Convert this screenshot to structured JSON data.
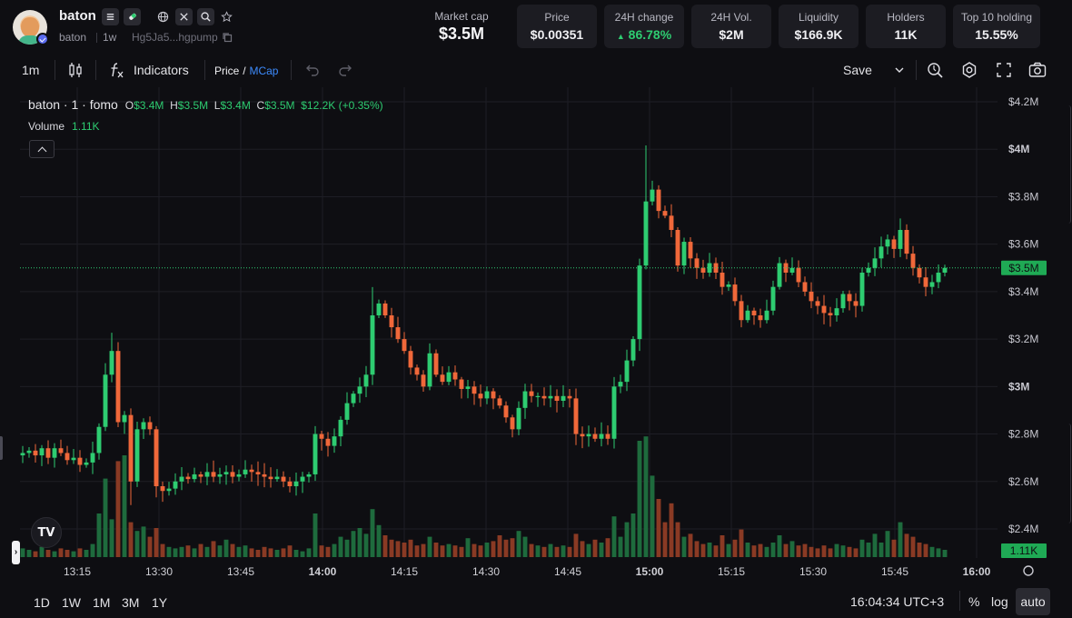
{
  "header": {
    "token_name": "baton",
    "ticker": "baton",
    "age": "1w",
    "address": "Hg5Ja5...hgpump",
    "icons": [
      "list-icon",
      "pill-icon",
      "globe-icon",
      "x-icon",
      "search-icon",
      "star-icon"
    ],
    "market_cap_label": "Market cap",
    "market_cap_value": "$3.5M",
    "stats": [
      {
        "label": "Price",
        "value": "$0.00351"
      },
      {
        "label": "24H change",
        "value": "86.78%",
        "color": "#2ecc71"
      },
      {
        "label": "24H Vol.",
        "value": "$2M"
      },
      {
        "label": "Liquidity",
        "value": "$166.9K"
      },
      {
        "label": "Holders",
        "value": "11K"
      },
      {
        "label": "Top 10 holding",
        "value": "15.55%"
      }
    ]
  },
  "toolbar": {
    "interval": "1m",
    "indicators_label": "Indicators",
    "price_label": "Price",
    "slash": "/",
    "mcap_label": "MCap",
    "save_label": "Save",
    "icons": [
      "candles-icon",
      "fx-icon",
      "undo-icon",
      "redo-icon",
      "chevron-down-icon",
      "replay-icon",
      "settings-icon",
      "fullscreen-icon",
      "camera-icon"
    ]
  },
  "legend": {
    "title": "baton · 1 · fomo",
    "o_key": "O",
    "o_val": "$3.4M",
    "h_key": "H",
    "h_val": "$3.5M",
    "l_key": "L",
    "l_val": "$3.4M",
    "c_key": "C",
    "c_val": "$3.5M",
    "change": "$12.2K (+0.35%)",
    "volume_label": "Volume",
    "volume_value": "1.11K"
  },
  "chart_data": {
    "type": "candlestick",
    "y_axis_labels": [
      "$4.2M",
      "$4M",
      "$3.8M",
      "$3.6M",
      "$3.4M",
      "$3.2M",
      "$3M",
      "$2.8M",
      "$2.6M",
      "$2.4M"
    ],
    "x_axis_labels": [
      "13:15",
      "13:30",
      "13:45",
      "14:00",
      "14:15",
      "14:30",
      "14:45",
      "15:00",
      "15:15",
      "15:30",
      "15:45",
      "16:00"
    ],
    "bold_y_labels": [
      "$4M",
      "$3M"
    ],
    "bold_x_labels": [
      "14:00",
      "15:00",
      "16:00"
    ],
    "current_price_label": "$3.5M",
    "current_volume_label": "1.11K",
    "ylim": [
      2.35,
      4.2
    ],
    "unit": "M",
    "colors": {
      "up": "#2ecc71",
      "down": "#f0683a",
      "vol_up": "#1e6b3d",
      "vol_down": "#8a3a24",
      "grid": "#1e1e25"
    },
    "close_path": [
      2.72,
      2.73,
      2.71,
      2.74,
      2.7,
      2.74,
      2.72,
      2.69,
      2.7,
      2.67,
      2.68,
      2.72,
      2.83,
      3.05,
      3.15,
      2.85,
      2.88,
      2.6,
      2.82,
      2.85,
      2.82,
      2.58,
      2.56,
      2.57,
      2.6,
      2.62,
      2.61,
      2.63,
      2.62,
      2.64,
      2.62,
      2.63,
      2.64,
      2.62,
      2.63,
      2.65,
      2.64,
      2.63,
      2.62,
      2.61,
      2.62,
      2.6,
      2.58,
      2.6,
      2.62,
      2.63,
      2.8,
      2.78,
      2.75,
      2.79,
      2.86,
      2.93,
      2.97,
      3.0,
      3.05,
      3.3,
      3.35,
      3.3,
      3.25,
      3.2,
      3.15,
      3.08,
      3.05,
      3.0,
      3.14,
      3.05,
      3.02,
      3.06,
      3.03,
      2.99,
      3.0,
      2.97,
      2.95,
      2.98,
      2.95,
      2.92,
      2.87,
      2.82,
      2.91,
      2.98,
      2.96,
      2.96,
      2.95,
      2.96,
      2.94,
      2.96,
      2.95,
      2.8,
      2.79,
      2.8,
      2.78,
      2.8,
      2.78,
      3.0,
      3.02,
      3.11,
      3.2,
      3.51,
      3.78,
      3.83,
      3.74,
      3.72,
      3.66,
      3.51,
      3.61,
      3.54,
      3.5,
      3.48,
      3.52,
      3.48,
      3.42,
      3.43,
      3.36,
      3.28,
      3.32,
      3.3,
      3.28,
      3.32,
      3.42,
      3.52,
      3.48,
      3.5,
      3.44,
      3.4,
      3.36,
      3.34,
      3.31,
      3.3,
      3.33,
      3.39,
      3.36,
      3.34,
      3.48,
      3.5,
      3.54,
      3.59,
      3.62,
      3.58,
      3.66,
      3.56,
      3.5,
      3.46,
      3.42,
      3.44,
      3.48,
      3.5
    ],
    "volumes": [
      0.6,
      0.5,
      0.4,
      0.7,
      0.5,
      0.4,
      0.6,
      0.5,
      0.4,
      0.6,
      0.5,
      0.9,
      3.0,
      5.4,
      2.6,
      6.6,
      7.0,
      2.4,
      1.8,
      2.1,
      1.4,
      2.0,
      0.9,
      0.7,
      0.6,
      0.7,
      0.8,
      0.6,
      0.9,
      0.7,
      1.1,
      0.8,
      1.2,
      0.9,
      0.7,
      0.8,
      0.6,
      0.5,
      0.7,
      0.6,
      0.5,
      0.6,
      0.8,
      0.5,
      0.4,
      0.6,
      3.0,
      0.8,
      0.7,
      0.9,
      1.4,
      1.2,
      1.8,
      2.0,
      1.6,
      3.3,
      2.2,
      1.5,
      1.2,
      1.1,
      1.0,
      1.2,
      0.8,
      0.9,
      1.4,
      1.0,
      0.8,
      0.9,
      0.8,
      0.7,
      1.3,
      0.9,
      0.8,
      1.0,
      1.1,
      1.5,
      1.2,
      1.3,
      1.8,
      1.4,
      0.9,
      0.8,
      0.7,
      0.9,
      0.7,
      0.8,
      0.7,
      1.6,
      1.1,
      0.9,
      1.2,
      1.0,
      1.3,
      2.8,
      1.4,
      2.4,
      3.0,
      8.0,
      8.3,
      5.6,
      4.0,
      2.4,
      3.7,
      2.4,
      1.4,
      1.6,
      1.1,
      0.9,
      1.0,
      0.8,
      1.5,
      0.9,
      1.2,
      1.9,
      1.0,
      0.8,
      0.9,
      0.7,
      1.0,
      1.5,
      0.9,
      1.1,
      0.8,
      0.9,
      0.7,
      0.6,
      0.8,
      0.6,
      0.9,
      0.8,
      0.7,
      0.6,
      1.2,
      1.0,
      1.6,
      1.0,
      1.8,
      1.2,
      2.4,
      1.6,
      1.4,
      1.0,
      0.9,
      0.7,
      0.6,
      0.5
    ]
  },
  "footer": {
    "ranges": [
      "1D",
      "1W",
      "1M",
      "3M",
      "1Y"
    ],
    "clock": "16:04:34 UTC+3",
    "percent": "%",
    "log": "log",
    "auto": "auto"
  }
}
